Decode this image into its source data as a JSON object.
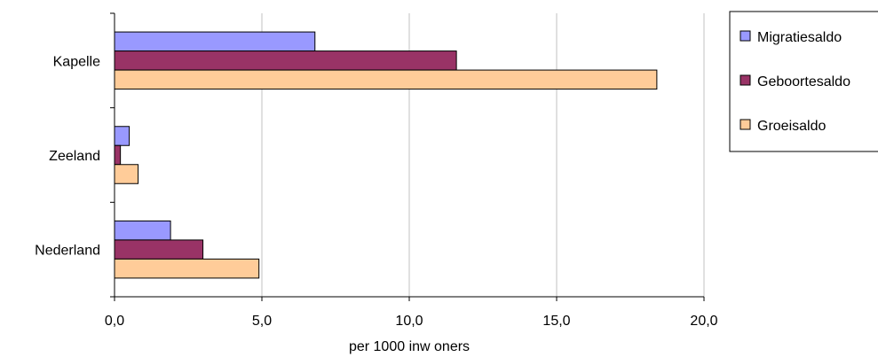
{
  "chart_data": {
    "type": "bar",
    "orientation": "horizontal",
    "categories": [
      "Kapelle",
      "Zeeland",
      "Nederland"
    ],
    "series": [
      {
        "name": "Migratiesaldo",
        "color": "#9999ff",
        "values": [
          6.8,
          0.5,
          1.9
        ]
      },
      {
        "name": "Geboortesaldo",
        "color": "#993366",
        "values": [
          11.6,
          0.2,
          3.0
        ]
      },
      {
        "name": "Groeisaldo",
        "color": "#ffcc99",
        "values": [
          18.4,
          0.8,
          4.9
        ]
      }
    ],
    "xlabel": "per 1000 inw oners",
    "ylabel": "",
    "xlim": [
      0,
      20
    ],
    "x_ticks": [
      0,
      5,
      10,
      15,
      20
    ],
    "x_tick_labels": [
      "0,0",
      "5,0",
      "10,0",
      "15,0",
      "20,0"
    ],
    "grid": "vertical",
    "legend": "right"
  }
}
